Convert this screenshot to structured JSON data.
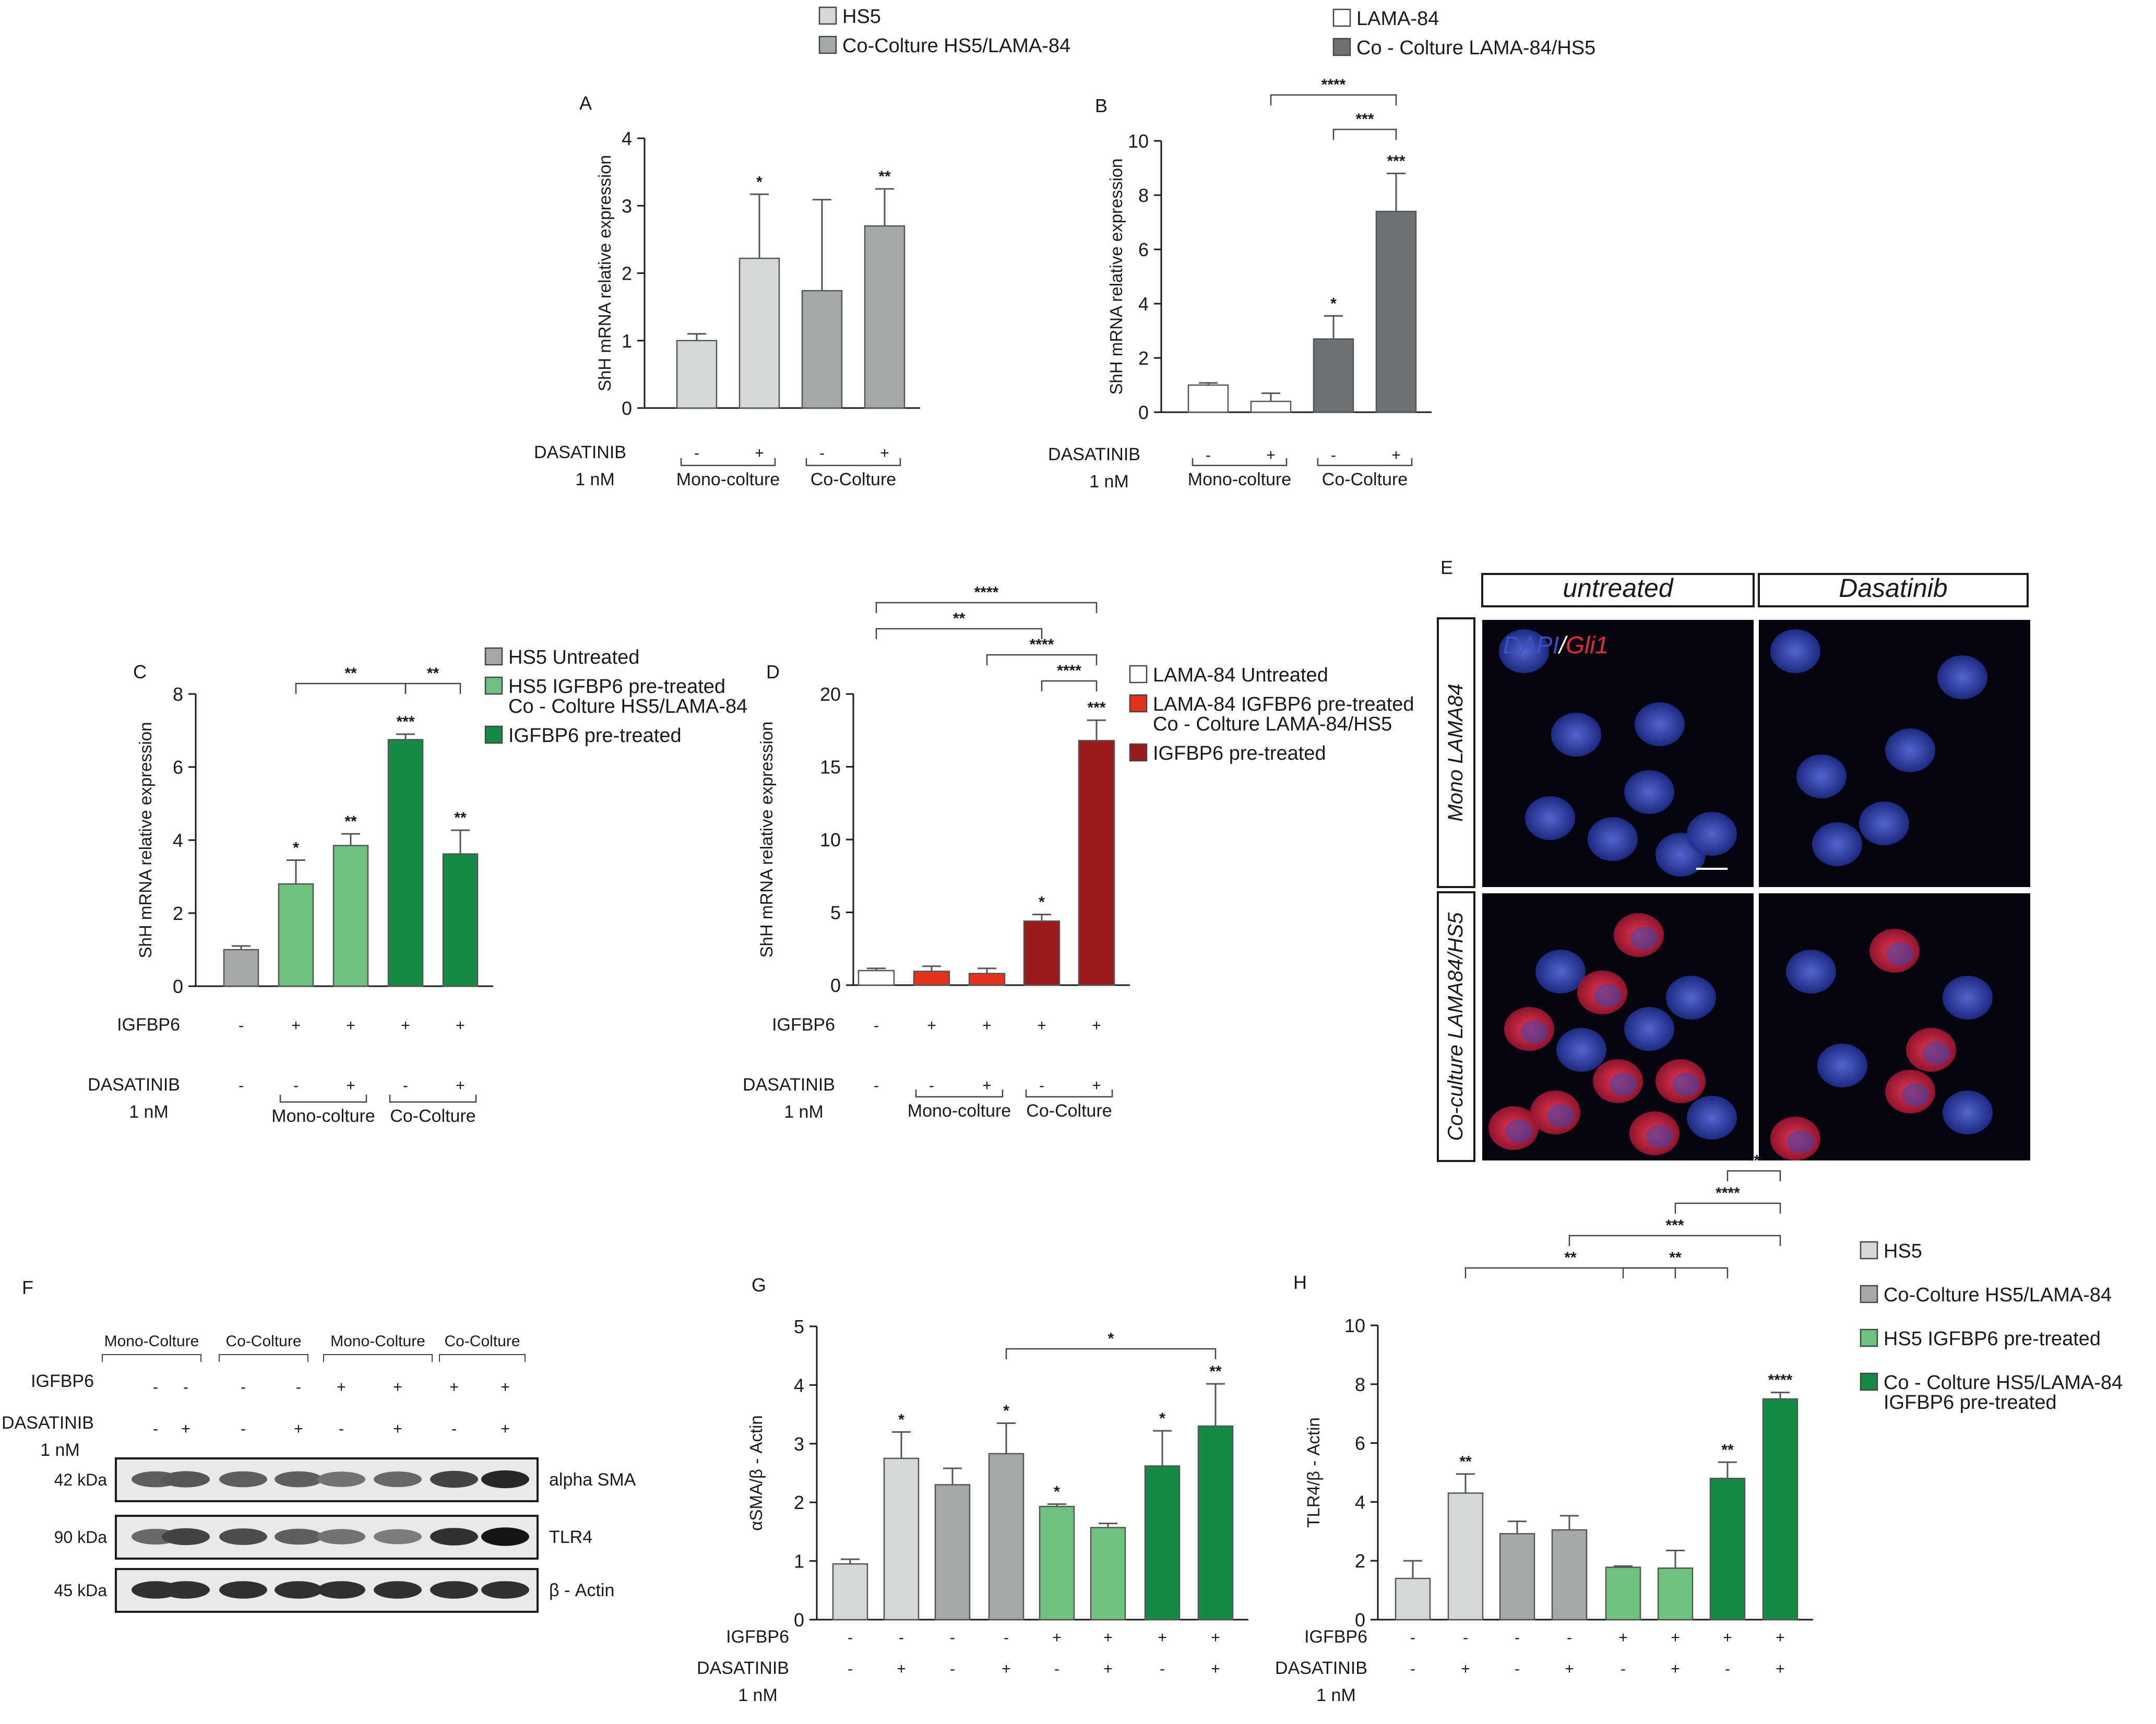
{
  "colors": {
    "hs5": "#d5d9d5",
    "cocult_hs5": "#a4a8a8",
    "lama84": "#ffffff",
    "cocult_lama": "#6e7275",
    "igfbp_light": "#6dc27e",
    "igfbp_dark": "#148a45",
    "lama_igfbp": "#e2321e",
    "lama_dark": "#9b1b1d",
    "axis": "#1a1a1a",
    "dapi": "#3a52c8",
    "gli1": "#e8283c"
  },
  "chart_data": [
    {
      "id": "A",
      "type": "bar",
      "panel_label": "A",
      "legend": [
        {
          "label": "HS5",
          "color": "#d5d9d5"
        },
        {
          "label": "Co-Colture HS5/LAMA-84",
          "color": "#a4a8a8"
        }
      ],
      "ylabel": "ShH mRNA relative expression",
      "ylim": [
        0,
        4
      ],
      "yticks": [
        "0",
        "1",
        "2",
        "3",
        "4"
      ],
      "values": [
        1.0,
        2.22,
        1.74,
        2.7
      ],
      "errors": [
        0.1,
        0.95,
        1.35,
        0.55
      ],
      "bar_colors": [
        "#d5d9d5",
        "#d5d9d5",
        "#a4a8a8",
        "#a4a8a8"
      ],
      "sig": [
        "",
        "*",
        "",
        "**"
      ],
      "rows": [
        {
          "label": "DASATINIB",
          "sub": "1 nM",
          "marks": [
            "-",
            "+",
            "-",
            "+"
          ]
        }
      ],
      "groups": [
        {
          "label": "Mono-colture",
          "from": 0,
          "to": 1
        },
        {
          "label": "Co-Colture",
          "from": 2,
          "to": 3
        }
      ],
      "brackets": []
    },
    {
      "id": "B",
      "type": "bar",
      "panel_label": "B",
      "legend": [
        {
          "label": "LAMA-84",
          "color": "#ffffff"
        },
        {
          "label": "Co - Colture LAMA-84/HS5",
          "color": "#6e7275"
        }
      ],
      "ylabel": "ShH mRNA relative expression",
      "ylim": [
        0,
        10
      ],
      "yticks": [
        "0",
        "2",
        "4",
        "6",
        "8",
        "10"
      ],
      "values": [
        1.0,
        0.4,
        2.7,
        7.4
      ],
      "errors": [
        0.08,
        0.3,
        0.85,
        1.4
      ],
      "bar_colors": [
        "#ffffff",
        "#ffffff",
        "#6e7275",
        "#6e7275"
      ],
      "sig": [
        "",
        "",
        "*",
        "***"
      ],
      "rows": [
        {
          "label": "DASATINIB",
          "sub": "1 nM",
          "marks": [
            "-",
            "+",
            "-",
            "+"
          ]
        }
      ],
      "groups": [
        {
          "label": "Mono-colture",
          "from": 0,
          "to": 1
        },
        {
          "label": "Co-Colture",
          "from": 2,
          "to": 3
        }
      ],
      "brackets": [
        {
          "from": 1,
          "to": 3,
          "label": "****",
          "level": 2
        },
        {
          "from": 2,
          "to": 3,
          "label": "***",
          "level": 1
        }
      ]
    },
    {
      "id": "C",
      "type": "bar",
      "panel_label": "C",
      "legend": [
        {
          "label": "HS5 Untreated",
          "color": "#a4a8a8"
        },
        {
          "label": "HS5 IGFBP6 pre-treated",
          "label2": "Co - Colture HS5/LAMA-84",
          "color": "#6dc27e"
        },
        {
          "label": "IGFBP6 pre-treated",
          "color": "#148a45"
        }
      ],
      "ylabel": "ShH mRNA relative expression",
      "ylim": [
        0,
        8
      ],
      "yticks": [
        "0",
        "2",
        "4",
        "6",
        "8"
      ],
      "values": [
        1.0,
        2.8,
        3.85,
        6.75,
        3.62
      ],
      "errors": [
        0.1,
        0.65,
        0.32,
        0.15,
        0.65
      ],
      "bar_colors": [
        "#a4a8a8",
        "#6dc27e",
        "#6dc27e",
        "#148a45",
        "#148a45"
      ],
      "sig": [
        "",
        "*",
        "**",
        "***",
        "**"
      ],
      "rows": [
        {
          "label": "IGFBP6",
          "sub": "",
          "marks": [
            "-",
            "+",
            "+",
            "+",
            "+"
          ]
        },
        {
          "label": "DASATINIB",
          "sub": "1 nM",
          "marks": [
            "-",
            "-",
            "+",
            "-",
            "+"
          ]
        }
      ],
      "groups": [
        {
          "label": "Mono-colture",
          "from": 1,
          "to": 2
        },
        {
          "label": "Co-Colture",
          "from": 3,
          "to": 4
        }
      ],
      "brackets": [
        {
          "from": 1,
          "to": 3,
          "label": "**",
          "level": 1
        },
        {
          "from": 3,
          "to": 4,
          "label": "**",
          "level": 1
        }
      ]
    },
    {
      "id": "D",
      "type": "bar",
      "panel_label": "D",
      "legend": [
        {
          "label": "LAMA-84 Untreated",
          "color": "#ffffff"
        },
        {
          "label": "LAMA-84 IGFBP6 pre-treated",
          "label2": "Co - Colture LAMA-84/HS5",
          "color": "#e2321e"
        },
        {
          "label": "IGFBP6 pre-treated",
          "color": "#9b1b1d"
        }
      ],
      "ylabel": "ShH mRNA relative expression",
      "ylim": [
        0,
        20
      ],
      "yticks": [
        "0",
        "5",
        "10",
        "15",
        "20"
      ],
      "values": [
        1.0,
        0.95,
        0.8,
        4.4,
        16.8
      ],
      "errors": [
        0.15,
        0.35,
        0.35,
        0.45,
        1.4
      ],
      "bar_colors": [
        "#ffffff",
        "#e2321e",
        "#e2321e",
        "#9b1b1d",
        "#9b1b1d"
      ],
      "sig": [
        "",
        "",
        "",
        "*",
        "***"
      ],
      "rows": [
        {
          "label": "IGFBP6",
          "sub": "",
          "marks": [
            "-",
            "+",
            "+",
            "+",
            "+"
          ]
        },
        {
          "label": "DASATINIB",
          "sub": "1 nM",
          "marks": [
            "-",
            "-",
            "+",
            "-",
            "+"
          ]
        }
      ],
      "groups": [
        {
          "label": "Mono-colture",
          "from": 1,
          "to": 2
        },
        {
          "label": "Co-Colture",
          "from": 3,
          "to": 4
        }
      ],
      "brackets": [
        {
          "from": 0,
          "to": 3,
          "label": "**",
          "level": 3
        },
        {
          "from": 0,
          "to": 4,
          "label": "****",
          "level": 4
        },
        {
          "from": 2,
          "to": 4,
          "label": "****",
          "level": 2
        },
        {
          "from": 3,
          "to": 4,
          "label": "****",
          "level": 1
        }
      ]
    },
    {
      "id": "G",
      "type": "bar",
      "panel_label": "G",
      "legend": [],
      "ylabel": "αSMA/β - Actin",
      "ylim": [
        0,
        5
      ],
      "yticks": [
        "0",
        "1",
        "2",
        "3",
        "4",
        "5"
      ],
      "values": [
        0.95,
        2.75,
        2.3,
        2.83,
        1.93,
        1.57,
        2.62,
        3.3
      ],
      "errors": [
        0.08,
        0.45,
        0.28,
        0.52,
        0.04,
        0.07,
        0.6,
        0.72
      ],
      "bar_colors": [
        "#d5d9d5",
        "#d5d9d5",
        "#a4a8a8",
        "#a4a8a8",
        "#6dc27e",
        "#6dc27e",
        "#148a45",
        "#148a45"
      ],
      "sig": [
        "",
        "*",
        "",
        "*",
        "*",
        "",
        "*",
        "**"
      ],
      "rows": [
        {
          "label": "IGFBP6",
          "sub": "",
          "marks": [
            "-",
            "-",
            "-",
            "-",
            "+",
            "+",
            "+",
            "+"
          ]
        },
        {
          "label": "DASATINIB",
          "sub": "1 nM",
          "marks": [
            "-",
            "+",
            "-",
            "+",
            "-",
            "+",
            "-",
            "+"
          ]
        }
      ],
      "groups": [],
      "brackets": [
        {
          "from": 3,
          "to": 7,
          "label": "*",
          "level": 1
        }
      ]
    },
    {
      "id": "H",
      "type": "bar",
      "panel_label": "H",
      "legend": [
        {
          "label": "HS5",
          "color": "#d5d9d5"
        },
        {
          "label": "Co-Colture HS5/LAMA-84",
          "color": "#a4a8a8"
        },
        {
          "label": "HS5 IGFBP6 pre-treated",
          "color": "#6dc27e"
        },
        {
          "label": "Co - Colture HS5/LAMA-84",
          "label2": "IGFBP6 pre-treated",
          "color": "#148a45"
        }
      ],
      "ylabel": "TLR4/β - Actin",
      "ylim": [
        0,
        10
      ],
      "yticks": [
        "0",
        "2",
        "4",
        "6",
        "8",
        "10"
      ],
      "values": [
        1.4,
        4.3,
        2.92,
        3.05,
        1.78,
        1.75,
        4.8,
        7.5
      ],
      "errors": [
        0.6,
        0.65,
        0.42,
        0.48,
        0.04,
        0.6,
        0.55,
        0.22
      ],
      "bar_colors": [
        "#d5d9d5",
        "#d5d9d5",
        "#a4a8a8",
        "#a4a8a8",
        "#6dc27e",
        "#6dc27e",
        "#148a45",
        "#148a45"
      ],
      "sig": [
        "",
        "**",
        "",
        "",
        "",
        "",
        "**",
        "****"
      ],
      "rows": [
        {
          "label": "IGFBP6",
          "sub": "",
          "marks": [
            "-",
            "-",
            "-",
            "-",
            "+",
            "+",
            "+",
            "+"
          ]
        },
        {
          "label": "DASATINIB",
          "sub": "1 nM",
          "marks": [
            "-",
            "+",
            "-",
            "+",
            "-",
            "+",
            "-",
            "+"
          ]
        }
      ],
      "groups": [],
      "brackets": [
        {
          "from": 1,
          "to": 5,
          "label": "**",
          "level": 1
        },
        {
          "from": 4,
          "to": 6,
          "label": "**",
          "level": 1
        },
        {
          "from": 3,
          "to": 7,
          "label": "***",
          "level": 2
        },
        {
          "from": 5,
          "to": 7,
          "label": "****",
          "level": 3
        },
        {
          "from": 6,
          "to": 7,
          "label": "**",
          "level": 4
        }
      ]
    }
  ],
  "panel_e": {
    "label": "E",
    "col_headers": [
      "untreated",
      "Dasatinib"
    ],
    "row_headers": [
      "Mono LAMA84",
      "Co-culture LAMA84/HS5"
    ],
    "stain_dapi": "DAPI",
    "stain_sep": "/",
    "stain_gli1": "Gli1"
  },
  "panel_f": {
    "label": "F",
    "groups": [
      "Mono-Colture",
      "Co-Colture",
      "Mono-Colture",
      "Co-Colture"
    ],
    "rows": [
      {
        "label": "IGFBP6",
        "sub": "",
        "marks": [
          "-",
          "-",
          "-",
          "-",
          "+",
          "+",
          "+",
          "+"
        ]
      },
      {
        "label": "DASATINIB",
        "sub": "1 nM",
        "marks": [
          "-",
          "+",
          "-",
          "+",
          "-",
          "+",
          "-",
          "+"
        ]
      }
    ],
    "blots": [
      {
        "kda": "42 kDa",
        "protein": "alpha SMA",
        "intensity": [
          0.55,
          0.6,
          0.55,
          0.55,
          0.45,
          0.5,
          0.7,
          0.85
        ]
      },
      {
        "kda": "90 kDa",
        "protein": "TLR4",
        "intensity": [
          0.5,
          0.7,
          0.65,
          0.55,
          0.45,
          0.4,
          0.8,
          0.95
        ]
      },
      {
        "kda": "45 kDa",
        "protein": "β - Actin",
        "intensity": [
          0.8,
          0.8,
          0.8,
          0.8,
          0.8,
          0.8,
          0.8,
          0.8
        ]
      }
    ]
  }
}
